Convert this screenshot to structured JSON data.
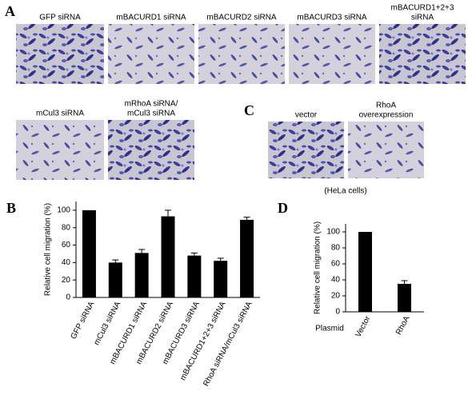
{
  "panel_labels": [
    "A",
    "B",
    "C",
    "D"
  ],
  "micrographs_a": [
    [
      "GFP siRNA"
    ],
    [
      "mBACURD1 siRNA"
    ],
    [
      "mBACURD2 siRNA"
    ],
    [
      "mBACURD3 siRNA"
    ],
    [
      "mBACURD1+2+3",
      "siRNA"
    ],
    [
      "mCul3 siRNA"
    ],
    [
      "mRhoA siRNA/",
      "mCul3 siRNA"
    ]
  ],
  "micrographs_c": [
    [
      "vector"
    ],
    [
      "RhoA",
      "overexpression"
    ]
  ],
  "c_caption": "(HeLa cells)",
  "chart_data": [
    {
      "type": "bar",
      "ylabel": "Relative cell migration (%)",
      "categories": [
        "GFP siRNA",
        "mCul3 siRNA",
        "mBACURD1 siRNA",
        "mBACURD2 siRNA",
        "mBACURD3 siRNA",
        "mBACURD1+2+3 siRNA",
        "RhoA siRNA/mCul3 siRNA"
      ],
      "values": [
        100,
        40,
        51,
        93,
        48,
        42,
        89
      ],
      "errors": [
        0,
        3,
        4,
        7,
        3,
        3,
        3
      ],
      "color": "#000000",
      "ylim": [
        0,
        110
      ],
      "yticks": [
        0,
        20,
        40,
        60,
        80,
        100
      ]
    },
    {
      "type": "bar",
      "ylabel": "Relative cell migration (%)",
      "xlabel": "Plasmid",
      "categories": [
        "Vector",
        "RhoA"
      ],
      "values": [
        100,
        35
      ],
      "errors": [
        0,
        4
      ],
      "color": "#000000",
      "ylim": [
        0,
        110
      ],
      "yticks": [
        0,
        20,
        40,
        60,
        80,
        100
      ]
    }
  ]
}
